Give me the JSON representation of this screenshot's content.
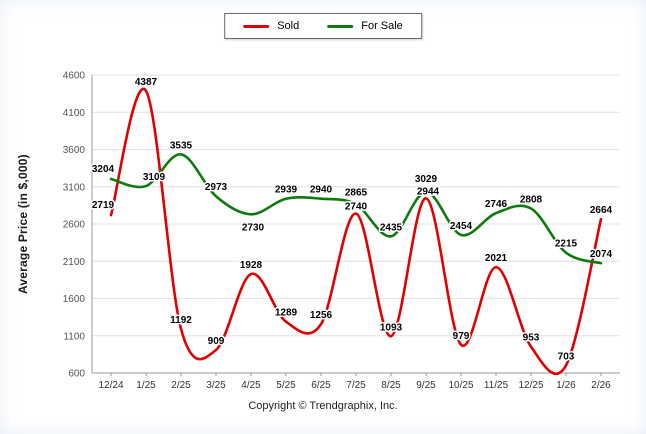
{
  "footer": {
    "copyright": "Copyright © Trendgraphix, Inc."
  },
  "chart_data": {
    "type": "line",
    "categories": [
      "12/24",
      "1/25",
      "2/25",
      "3/25",
      "4/25",
      "5/25",
      "6/25",
      "7/25",
      "8/25",
      "9/25",
      "10/25",
      "11/25",
      "12/25",
      "1/26",
      "2/26"
    ],
    "series": [
      {
        "name": "Sold",
        "color": "#e00000",
        "values": [
          2719,
          4387,
          1192,
          909,
          1928,
          1289,
          1256,
          2740,
          1093,
          2944,
          979,
          2021,
          953,
          703,
          2664
        ]
      },
      {
        "name": "For Sale",
        "color": "#0e7a0e",
        "values": [
          3204,
          3109,
          3535,
          2973,
          2730,
          2939,
          2940,
          2865,
          2435,
          3029,
          2454,
          2746,
          2808,
          2215,
          2074
        ]
      }
    ],
    "ylabel": "Average Price (in $,000)",
    "ylim": [
      600,
      4600
    ],
    "yticks": [
      600,
      1100,
      1600,
      2100,
      2600,
      3100,
      3600,
      4100,
      4600
    ],
    "grid": true,
    "line_style": "smooth",
    "data_labels": true,
    "legend_position": "top-center"
  }
}
